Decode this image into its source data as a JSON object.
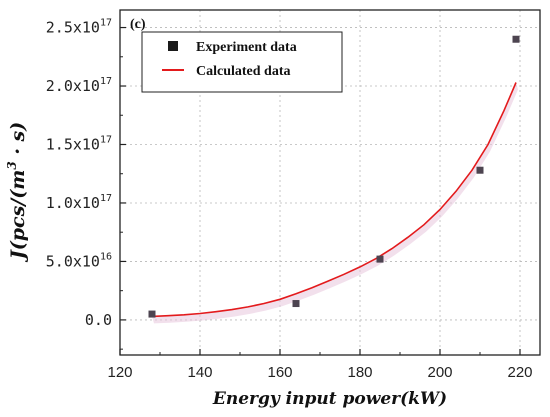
{
  "chart_data": {
    "type": "scatter",
    "panel_label": "(c)",
    "xlabel": "Energy input power(kW)",
    "ylabel": "J(pcs/(m³ · s)",
    "xlim": [
      120,
      225
    ],
    "ylim": [
      -3e+16,
      2.65e+17
    ],
    "x_ticks": [
      120,
      140,
      160,
      180,
      200,
      220
    ],
    "x_tick_labels": [
      "120",
      "140",
      "160",
      "180",
      "200",
      "220"
    ],
    "y_ticks": [
      0,
      5e+16,
      1e+17,
      1.5e+17,
      2e+17,
      2.5e+17
    ],
    "y_tick_labels": [
      {
        "mantissa": "0.0",
        "exp": ""
      },
      {
        "mantissa": "5.0x10",
        "exp": "16"
      },
      {
        "mantissa": "1.0x10",
        "exp": "17"
      },
      {
        "mantissa": "1.5x10",
        "exp": "17"
      },
      {
        "mantissa": "2.0x10",
        "exp": "17"
      },
      {
        "mantissa": "2.5x10",
        "exp": "17"
      }
    ],
    "grid": true,
    "legend_position": "top-left",
    "series": [
      {
        "name": "Experiment data",
        "kind": "scatter",
        "color": "#4d4450",
        "x": [
          128,
          164,
          185,
          210,
          219
        ],
        "y": [
          5000000000000000.0,
          1.4e+16,
          5.2e+16,
          1.28e+17,
          2.4e+17
        ]
      },
      {
        "name": "Calculated data",
        "kind": "line",
        "color": "#e31a1c",
        "x": [
          128,
          132,
          136,
          140,
          144,
          148,
          152,
          156,
          160,
          164,
          168,
          172,
          176,
          180,
          184,
          188,
          192,
          196,
          200,
          204,
          208,
          212,
          216,
          219
        ],
        "y": [
          3000000000000000.0,
          3600000000000000.0,
          4400000000000000.0,
          5500000000000000.0,
          7000000000000000.0,
          8800000000000000.0,
          1.11e+16,
          1.4e+16,
          1.76e+16,
          2.23e+16,
          2.75e+16,
          3.32e+16,
          3.9e+16,
          4.53e+16,
          5.24e+16,
          6.1e+16,
          7.07e+16,
          8.14e+16,
          9.44e+16,
          1.1e+17,
          1.28e+17,
          1.5e+17,
          1.79e+17,
          2.03e+17
        ]
      }
    ]
  }
}
